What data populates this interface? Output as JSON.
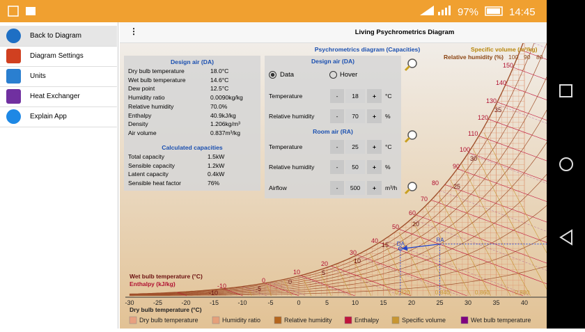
{
  "status_bar": {
    "battery": "97%",
    "time": "14:45"
  },
  "drawer": {
    "items": [
      "Back to Diagram",
      "Diagram Settings",
      "Units",
      "Heat Exchanger",
      "Explain App"
    ]
  },
  "toolbar": {
    "title": "Living Psychrometrics Diagram"
  },
  "design_panel": {
    "title": "Design air (DA)",
    "rows": [
      [
        "Dry bulb temperature",
        "18.0°C"
      ],
      [
        "Wet bulb temperature",
        "14.6°C"
      ],
      [
        "Dew point",
        "12.5°C"
      ],
      [
        "Humidity ratio",
        "0.0090kg/kg"
      ],
      [
        "Relative humidity",
        "70.0%"
      ],
      [
        "Enthalpy",
        "40.9kJ/kg"
      ],
      [
        "Density",
        "1.206kg/m³"
      ],
      [
        "Air volume",
        "0.837m³/kg"
      ]
    ],
    "capacities_title": "Calculated capacities",
    "capacities": [
      [
        "Total capacity",
        "1.5kW"
      ],
      [
        "Sensible capacity",
        "1.2kW"
      ],
      [
        "Latent capacity",
        "0.4kW"
      ],
      [
        "Sensible heat factor",
        "76%"
      ]
    ]
  },
  "controls": {
    "title": "Psychrometrics diagram (Capacities)",
    "design_title": "Design air (DA)",
    "modes": [
      "Data",
      "Hover"
    ],
    "design": [
      {
        "label": "Temperature",
        "value": 18,
        "unit": "°C"
      },
      {
        "label": "Relative humidity",
        "value": 70,
        "unit": "%"
      }
    ],
    "room_title": "Room air (RA)",
    "room": [
      {
        "label": "Temperature",
        "value": 25,
        "unit": "°C"
      },
      {
        "label": "Relative humidity",
        "value": 50,
        "unit": "%"
      },
      {
        "label": "Airflow",
        "value": 500,
        "unit": "m³/h"
      }
    ],
    "minus": "-",
    "plus": "+"
  },
  "diagram": {
    "x_axis_label": "Dry bulb temperature (°C)",
    "x_ticks": [
      -30,
      -25,
      -20,
      -15,
      -10,
      -5,
      0,
      5,
      10,
      15,
      20,
      25,
      30,
      35,
      40
    ],
    "specific_volume_label": "Specific volume (m³/kg)",
    "rh_label": "Relative humidity (%)",
    "rh_ticks": [
      100,
      90,
      80
    ],
    "wet_bulb_label": "Wet bulb temperature (°C)",
    "enthalpy_label": "Enthalpy (kJ/kg)",
    "enthalpy_ticks": [
      150,
      140,
      130,
      120,
      110,
      100,
      90,
      80,
      70,
      60,
      50,
      40,
      30,
      20,
      10,
      0,
      -10
    ],
    "wet_bulb_ticks": [
      35,
      30,
      25,
      20,
      15,
      10,
      5,
      0,
      -5,
      -10
    ],
    "volume_ticks": [
      {
        "value": 0.82,
        "label": "0.820"
      },
      {
        "value": 0.84,
        "label": "0.840"
      },
      {
        "value": 0.86,
        "label": "0.860"
      },
      {
        "value": 0.88,
        "label": "0.880"
      }
    ],
    "points": [
      "DA",
      "RA"
    ]
  },
  "legend": [
    "Dry bulb temperature",
    "Humidity ratio",
    "Relative humidity",
    "Enthalpy",
    "Specific volume",
    "Wet bulb temperature"
  ]
}
